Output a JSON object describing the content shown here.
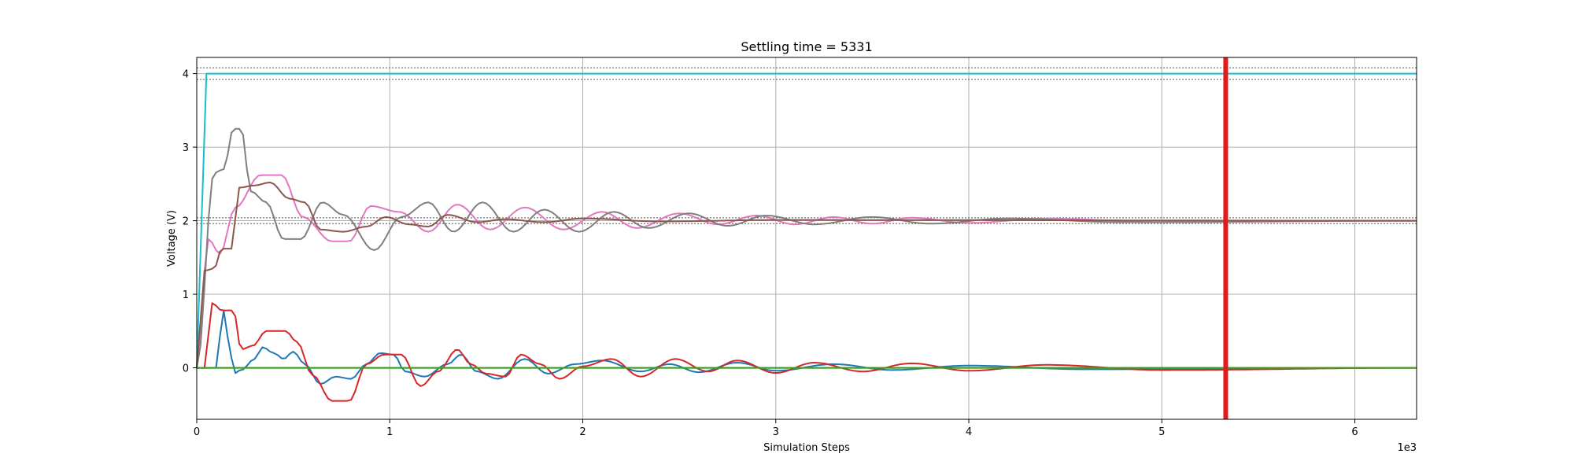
{
  "chart_data": {
    "type": "line",
    "title": "Settling time = 5331",
    "xlabel": "Simulation Steps",
    "ylabel": "Voltage (V)",
    "x_multiplier_label": "1e3",
    "xlim": [
      0,
      6320
    ],
    "ylim": [
      -0.7,
      4.22
    ],
    "x_ticks": [
      0,
      1000,
      2000,
      3000,
      4000,
      5000,
      6000
    ],
    "x_tick_labels": [
      "0",
      "1",
      "2",
      "3",
      "4",
      "5",
      "6"
    ],
    "y_ticks": [
      0,
      1,
      2,
      3,
      4
    ],
    "y_tick_labels": [
      "0",
      "1",
      "2",
      "3",
      "4"
    ],
    "grid": true,
    "settling_time": 5331,
    "settling_marker_color": "#e31a1c",
    "tolerance_bands": [
      {
        "center": 4,
        "lower": 3.92,
        "upper": 4.08
      },
      {
        "center": 2,
        "lower": 1.96,
        "upper": 2.04
      }
    ],
    "series": [
      {
        "color": "#17becf",
        "type": "step",
        "initial": 0,
        "final": 4,
        "rise_end": 50
      },
      {
        "color": "#e377c2",
        "type": "osc",
        "initial": 0,
        "final": 2,
        "peaks": [
          [
            0,
            0
          ],
          [
            60,
            1.75
          ],
          [
            120,
            1.55
          ],
          [
            200,
            2.18
          ],
          [
            330,
            2.62
          ],
          [
            440,
            2.62
          ],
          [
            550,
            2.05
          ],
          [
            700,
            1.72
          ],
          [
            790,
            1.72
          ],
          [
            900,
            2.2
          ],
          [
            1050,
            2.12
          ],
          [
            1200,
            1.85
          ],
          [
            1350,
            2.22
          ],
          [
            1520,
            1.88
          ],
          [
            1700,
            2.18
          ],
          [
            1900,
            1.88
          ],
          [
            2100,
            2.12
          ],
          [
            2280,
            1.9
          ],
          [
            2500,
            2.1
          ],
          [
            2700,
            1.95
          ],
          [
            2900,
            2.07
          ],
          [
            3100,
            1.95
          ],
          [
            3300,
            2.05
          ],
          [
            3500,
            1.96
          ],
          [
            3700,
            2.04
          ],
          [
            4000,
            1.97
          ],
          [
            4400,
            2.03
          ],
          [
            5000,
            1.98
          ],
          [
            6320,
            2.0
          ]
        ]
      },
      {
        "color": "#7f7f7f",
        "type": "osc",
        "initial": 0,
        "final": 2,
        "peaks": [
          [
            0,
            0
          ],
          [
            90,
            2.65
          ],
          [
            140,
            2.7
          ],
          [
            190,
            3.25
          ],
          [
            230,
            3.25
          ],
          [
            280,
            2.4
          ],
          [
            360,
            2.25
          ],
          [
            450,
            1.75
          ],
          [
            540,
            1.75
          ],
          [
            650,
            2.25
          ],
          [
            760,
            2.08
          ],
          [
            920,
            1.6
          ],
          [
            1060,
            2.05
          ],
          [
            1200,
            2.25
          ],
          [
            1330,
            1.85
          ],
          [
            1480,
            2.25
          ],
          [
            1640,
            1.85
          ],
          [
            1800,
            2.15
          ],
          [
            1980,
            1.85
          ],
          [
            2160,
            2.12
          ],
          [
            2340,
            1.9
          ],
          [
            2550,
            2.1
          ],
          [
            2750,
            1.93
          ],
          [
            2950,
            2.07
          ],
          [
            3200,
            1.95
          ],
          [
            3500,
            2.05
          ],
          [
            3800,
            1.96
          ],
          [
            4200,
            2.03
          ],
          [
            4800,
            1.98
          ],
          [
            6320,
            2.0
          ]
        ]
      },
      {
        "color": "#8c564b",
        "type": "osc",
        "initial": 0,
        "final": 2,
        "peaks": [
          [
            0,
            0
          ],
          [
            40,
            1.32
          ],
          [
            90,
            1.35
          ],
          [
            130,
            1.62
          ],
          [
            180,
            1.62
          ],
          [
            220,
            2.45
          ],
          [
            300,
            2.48
          ],
          [
            380,
            2.52
          ],
          [
            480,
            2.3
          ],
          [
            560,
            2.25
          ],
          [
            640,
            1.88
          ],
          [
            760,
            1.85
          ],
          [
            880,
            1.92
          ],
          [
            980,
            2.05
          ],
          [
            1100,
            1.95
          ],
          [
            1200,
            1.92
          ],
          [
            1300,
            2.08
          ],
          [
            1450,
            1.98
          ],
          [
            1600,
            2.02
          ],
          [
            1800,
            1.98
          ],
          [
            2000,
            2.03
          ],
          [
            2400,
            1.99
          ],
          [
            3000,
            2.01
          ],
          [
            6320,
            2.0
          ]
        ]
      },
      {
        "color": "#1f77b4",
        "type": "osc",
        "initial": 0,
        "final": 0,
        "peaks": [
          [
            0,
            0
          ],
          [
            60,
            0
          ],
          [
            110,
            0
          ],
          [
            130,
            0.85
          ],
          [
            170,
            0.35
          ],
          [
            190,
            -0.08
          ],
          [
            230,
            -0.03
          ],
          [
            300,
            0.12
          ],
          [
            340,
            0.28
          ],
          [
            400,
            0.2
          ],
          [
            450,
            0.12
          ],
          [
            500,
            0.22
          ],
          [
            560,
            0.05
          ],
          [
            640,
            -0.22
          ],
          [
            720,
            -0.12
          ],
          [
            800,
            -0.15
          ],
          [
            880,
            0.05
          ],
          [
            950,
            0.2
          ],
          [
            1020,
            0.18
          ],
          [
            1080,
            -0.05
          ],
          [
            1180,
            -0.12
          ],
          [
            1300,
            0.05
          ],
          [
            1370,
            0.18
          ],
          [
            1450,
            -0.05
          ],
          [
            1560,
            -0.15
          ],
          [
            1700,
            0.12
          ],
          [
            1820,
            -0.08
          ],
          [
            1960,
            0.05
          ],
          [
            2100,
            0.1
          ],
          [
            2300,
            -0.05
          ],
          [
            2450,
            0.05
          ],
          [
            2600,
            -0.06
          ],
          [
            2800,
            0.07
          ],
          [
            3000,
            -0.04
          ],
          [
            3300,
            0.05
          ],
          [
            3600,
            -0.03
          ],
          [
            4000,
            0.03
          ],
          [
            4600,
            -0.02
          ],
          [
            6320,
            0.0
          ]
        ]
      },
      {
        "color": "#d62728",
        "type": "osc",
        "initial": 0,
        "final": 0,
        "peaks": [
          [
            0,
            0
          ],
          [
            40,
            0
          ],
          [
            80,
            0.88
          ],
          [
            130,
            0.78
          ],
          [
            190,
            0.78
          ],
          [
            230,
            0.25
          ],
          [
            290,
            0.3
          ],
          [
            360,
            0.5
          ],
          [
            460,
            0.5
          ],
          [
            520,
            0.35
          ],
          [
            600,
            -0.1
          ],
          [
            700,
            -0.45
          ],
          [
            790,
            -0.45
          ],
          [
            880,
            0.05
          ],
          [
            970,
            0.18
          ],
          [
            1060,
            0.18
          ],
          [
            1160,
            -0.25
          ],
          [
            1250,
            -0.05
          ],
          [
            1350,
            0.25
          ],
          [
            1420,
            0.05
          ],
          [
            1500,
            -0.08
          ],
          [
            1600,
            -0.12
          ],
          [
            1680,
            0.18
          ],
          [
            1780,
            0.05
          ],
          [
            1880,
            -0.15
          ],
          [
            2000,
            0.02
          ],
          [
            2150,
            0.12
          ],
          [
            2300,
            -0.12
          ],
          [
            2480,
            0.12
          ],
          [
            2650,
            -0.05
          ],
          [
            2800,
            0.1
          ],
          [
            3000,
            -0.07
          ],
          [
            3200,
            0.07
          ],
          [
            3450,
            -0.05
          ],
          [
            3700,
            0.06
          ],
          [
            4000,
            -0.04
          ],
          [
            4400,
            0.04
          ],
          [
            5000,
            -0.03
          ],
          [
            6320,
            0.0
          ]
        ]
      },
      {
        "color": "#bcbd22",
        "type": "flat",
        "initial": 0,
        "final": 0
      },
      {
        "color": "#2ca02c",
        "type": "flat",
        "initial": 0,
        "final": 0
      }
    ]
  }
}
